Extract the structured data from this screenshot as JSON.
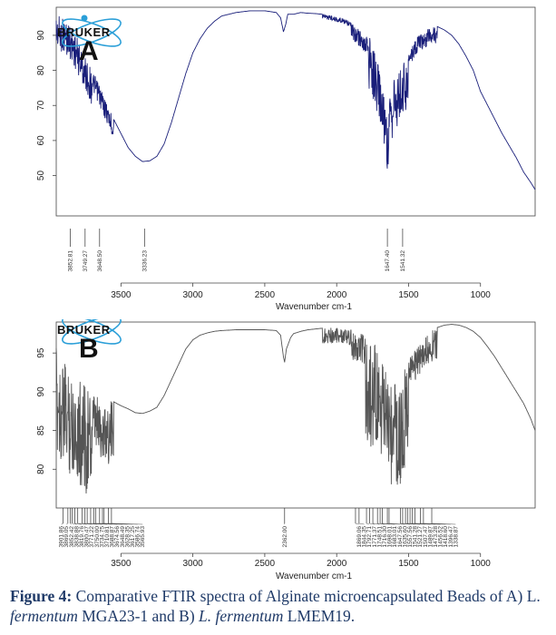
{
  "logo": {
    "text": "BRUKER",
    "color": "#2b9fd8"
  },
  "caption": {
    "label": "Figure 4:",
    "text1": " Comparative FTIR spectra of Alginate microencapsulated Beads of A) L. ",
    "species1": "fermentum",
    "strain1": " MGA23-1 and B) ",
    "species2": "L. fermentum",
    "strain2": " LMEM19.",
    "color": "#1f3a68"
  },
  "chart_data": [
    {
      "type": "line",
      "panel_letter": "A",
      "xlabel": "Wavenumber cm-1",
      "ylabel": "",
      "xlim": [
        3950,
        620
      ],
      "ylim": [
        38.5,
        98
      ],
      "x_ticks": [
        3500,
        3000,
        2500,
        2000,
        1500,
        1000
      ],
      "y_ticks": [
        50,
        60,
        70,
        80,
        90
      ],
      "line_color": "#1a1f7a",
      "series": [
        {
          "name": "",
          "x": [
            3950,
            3900,
            3850,
            3800,
            3750,
            3700,
            3650,
            3600,
            3550,
            3500,
            3450,
            3400,
            3350,
            3300,
            3250,
            3200,
            3150,
            3100,
            3050,
            3000,
            2950,
            2900,
            2850,
            2800,
            2700,
            2600,
            2500,
            2420,
            2390,
            2370,
            2355,
            2340,
            2300,
            2250,
            2200,
            2150,
            2100,
            2050,
            2000,
            1950,
            1900,
            1850,
            1800,
            1760,
            1740,
            1720,
            1700,
            1680,
            1660,
            1647,
            1640,
            1620,
            1600,
            1580,
            1560,
            1541,
            1520,
            1500,
            1480,
            1460,
            1440,
            1420,
            1400,
            1380,
            1350,
            1300,
            1250,
            1200,
            1150,
            1100,
            1050,
            1000,
            950,
            900,
            850,
            800,
            750,
            700,
            650,
            620
          ],
          "values": [
            96,
            95,
            93,
            89,
            84,
            80,
            76,
            71,
            66,
            62,
            58,
            55.5,
            54,
            54.2,
            55.5,
            59,
            65,
            72,
            79,
            85,
            89,
            92,
            94,
            95.5,
            96.5,
            97,
            97,
            96.5,
            95,
            91,
            93,
            96,
            96,
            96.5,
            96.3,
            96.2,
            96,
            95.8,
            95.3,
            94.8,
            93.5,
            92,
            90,
            89,
            86,
            83,
            80,
            76,
            72,
            66,
            70,
            74,
            79,
            80,
            81,
            82,
            84,
            85.5,
            87,
            88,
            89.5,
            90.5,
            91,
            91.5,
            92.5,
            92.5,
            91.5,
            90,
            87.5,
            84,
            80,
            74,
            70,
            66,
            62,
            58.5,
            55,
            51,
            48,
            46
          ]
        }
      ],
      "peak_labels": [
        "3852.81",
        "3749.27",
        "3648.50",
        "3336.23",
        "1647.40",
        "1541.32"
      ],
      "peak_positions": [
        3852.81,
        3749.27,
        3648.5,
        3336.23,
        1647.4,
        1541.32
      ]
    },
    {
      "type": "line",
      "panel_letter": "B",
      "xlabel": "Wavenumber cm-1",
      "ylabel": "",
      "xlim": [
        3950,
        620
      ],
      "ylim": [
        75,
        99
      ],
      "x_ticks": [
        3500,
        3000,
        2500,
        2000,
        1500,
        1000
      ],
      "y_ticks": [
        80,
        85,
        90,
        95
      ],
      "line_color": "#555555",
      "series": [
        {
          "name": "",
          "x": [
            3950,
            3900,
            3850,
            3800,
            3750,
            3700,
            3650,
            3600,
            3550,
            3500,
            3450,
            3400,
            3350,
            3300,
            3250,
            3200,
            3150,
            3100,
            3050,
            3000,
            2950,
            2900,
            2850,
            2800,
            2700,
            2600,
            2500,
            2420,
            2390,
            2370,
            2362,
            2350,
            2320,
            2300,
            2250,
            2200,
            2150,
            2100,
            2050,
            2000,
            1950,
            1900,
            1850,
            1800,
            1760,
            1740,
            1720,
            1700,
            1680,
            1660,
            1640,
            1620,
            1600,
            1580,
            1560,
            1545,
            1530,
            1500,
            1480,
            1460,
            1440,
            1420,
            1400,
            1380,
            1350,
            1300,
            1250,
            1200,
            1150,
            1100,
            1050,
            1000,
            950,
            900,
            850,
            800,
            750,
            700,
            650,
            620
          ],
          "values": [
            96,
            94,
            93,
            92,
            91,
            90,
            89.5,
            89,
            88.7,
            88.2,
            87.8,
            87.3,
            87.2,
            87.5,
            88,
            89.5,
            91.5,
            93.5,
            95.5,
            96.7,
            97.3,
            97.6,
            97.8,
            97.9,
            98,
            98,
            98,
            97.9,
            97.3,
            94.5,
            93.8,
            95.5,
            97,
            97.5,
            97.8,
            98,
            98.1,
            98.2,
            98.3,
            98.3,
            98.2,
            98,
            97.8,
            97.3,
            96.8,
            96.2,
            95.5,
            94.5,
            93.5,
            93,
            92.5,
            92,
            91.8,
            91.5,
            92,
            92.3,
            93,
            94,
            94.8,
            95.3,
            95.8,
            96.3,
            96.8,
            97.3,
            97.8,
            98.3,
            98.6,
            98.7,
            98.6,
            98.3,
            97.8,
            97,
            95.8,
            94.5,
            93,
            91.5,
            90,
            88.5,
            86.5,
            85
          ]
        }
      ],
      "peak_labels": [
        "3901.86",
        "3869.05",
        "3852.42",
        "3838.88",
        "3819.76",
        "3800.47",
        "3771.22",
        "3750.00",
        "3734.75",
        "3710.81",
        "3688.87",
        "3674.56",
        "3648.49",
        "3628.35",
        "3617.25",
        "3586.74",
        "3565.93",
        "2362.00",
        "1869.06",
        "1844.35",
        "1792.71",
        "1771.37",
        "1748.51",
        "1716.30",
        "1698.01",
        "1683.01",
        "1647.56",
        "1635.60",
        "1557.56",
        "1541.28",
        "1521.27",
        "1507.47",
        "1489.87",
        "1473.28",
        "1456.52",
        "1418.60",
        "1396.47",
        "1338.87"
      ],
      "peak_positions": [
        3901.86,
        3869.05,
        3852.42,
        3838.88,
        3819.76,
        3800.47,
        3771.22,
        3750.0,
        3734.75,
        3710.81,
        3688.87,
        3674.56,
        3648.49,
        3628.35,
        3617.25,
        3586.74,
        3565.93,
        2362.0,
        1869.06,
        1844.35,
        1792.71,
        1771.37,
        1748.51,
        1716.3,
        1698.01,
        1683.01,
        1647.56,
        1635.6,
        1557.56,
        1541.28,
        1521.27,
        1507.47,
        1489.87,
        1473.28,
        1456.52,
        1418.6,
        1396.47,
        1338.87
      ]
    }
  ]
}
